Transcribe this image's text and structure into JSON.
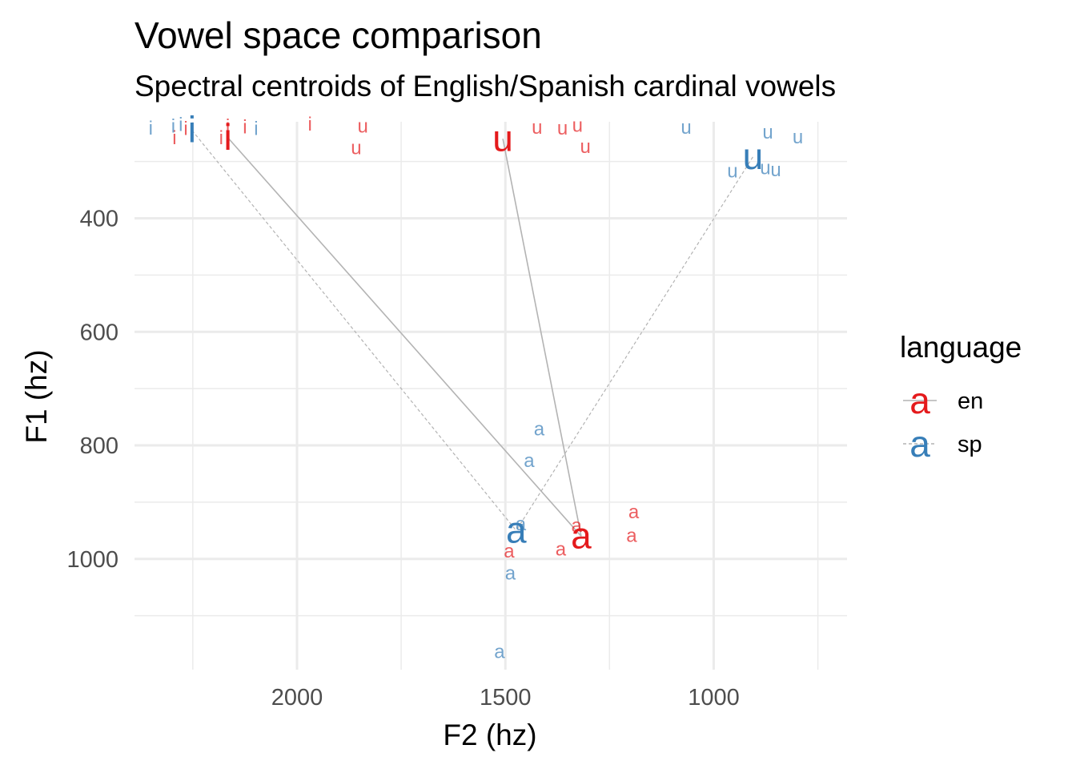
{
  "chart_data": {
    "type": "scatter",
    "title": "Vowel space comparison",
    "subtitle": "Spectral centroids of English/Spanish cardinal vowels",
    "xlabel": "F2 (hz)",
    "ylabel": "F1 (hz)",
    "x_reversed": true,
    "y_reversed": true,
    "xlim": [
      2390,
      680
    ],
    "ylim": [
      230,
      1195
    ],
    "x_ticks": [
      2000,
      1500,
      1000
    ],
    "x_tick_labels": [
      "2000",
      "1500",
      "1000"
    ],
    "x_minor_ticks": [
      2250,
      1750,
      1250,
      750
    ],
    "y_ticks": [
      400,
      600,
      800,
      1000
    ],
    "y_tick_labels": [
      "400",
      "600",
      "800",
      "1000"
    ],
    "y_minor_ticks": [
      300,
      500,
      700,
      900,
      1100
    ],
    "grid": true,
    "legend": {
      "title": "language",
      "position": "right",
      "entries": [
        {
          "key": "en",
          "label": "en",
          "glyph": "a",
          "color": "#e41a1c"
        },
        {
          "key": "sp",
          "label": "sp",
          "glyph": "a",
          "color": "#377eb8"
        }
      ]
    },
    "colors": {
      "en": "#e41a1c",
      "sp": "#377eb8",
      "connector": "#b3b3b3"
    },
    "tokens": [
      {
        "language": "en",
        "vowel": "i",
        "x": 2294,
        "y": 258
      },
      {
        "language": "en",
        "vowel": "i",
        "x": 2267,
        "y": 242
      },
      {
        "language": "en",
        "vowel": "i",
        "x": 2182,
        "y": 258
      },
      {
        "language": "en",
        "vowel": "i",
        "x": 2166,
        "y": 238
      },
      {
        "language": "en",
        "vowel": "i",
        "x": 2125,
        "y": 239
      },
      {
        "language": "en",
        "vowel": "i",
        "x": 1969,
        "y": 234
      },
      {
        "language": "en",
        "vowel": "u",
        "x": 1842,
        "y": 238
      },
      {
        "language": "en",
        "vowel": "u",
        "x": 1858,
        "y": 276
      },
      {
        "language": "en",
        "vowel": "u",
        "x": 1424,
        "y": 240
      },
      {
        "language": "en",
        "vowel": "u",
        "x": 1363,
        "y": 241
      },
      {
        "language": "en",
        "vowel": "u",
        "x": 1327,
        "y": 236
      },
      {
        "language": "en",
        "vowel": "u",
        "x": 1308,
        "y": 274
      },
      {
        "language": "en",
        "vowel": "a",
        "x": 1192,
        "y": 917
      },
      {
        "language": "en",
        "vowel": "a",
        "x": 1197,
        "y": 959
      },
      {
        "language": "en",
        "vowel": "a",
        "x": 1329,
        "y": 941
      },
      {
        "language": "en",
        "vowel": "a",
        "x": 1367,
        "y": 983
      },
      {
        "language": "en",
        "vowel": "a",
        "x": 1491,
        "y": 986
      },
      {
        "language": "sp",
        "vowel": "i",
        "x": 2351,
        "y": 241
      },
      {
        "language": "sp",
        "vowel": "i",
        "x": 2297,
        "y": 238
      },
      {
        "language": "sp",
        "vowel": "i",
        "x": 2279,
        "y": 235
      },
      {
        "language": "sp",
        "vowel": "i",
        "x": 2098,
        "y": 242
      },
      {
        "language": "sp",
        "vowel": "u",
        "x": 1066,
        "y": 240
      },
      {
        "language": "sp",
        "vowel": "u",
        "x": 870,
        "y": 248
      },
      {
        "language": "sp",
        "vowel": "u",
        "x": 798,
        "y": 257
      },
      {
        "language": "sp",
        "vowel": "u",
        "x": 955,
        "y": 317
      },
      {
        "language": "sp",
        "vowel": "u",
        "x": 876,
        "y": 311
      },
      {
        "language": "sp",
        "vowel": "u",
        "x": 851,
        "y": 315
      },
      {
        "language": "sp",
        "vowel": "a",
        "x": 1419,
        "y": 771
      },
      {
        "language": "sp",
        "vowel": "a",
        "x": 1443,
        "y": 827
      },
      {
        "language": "sp",
        "vowel": "a",
        "x": 1463,
        "y": 938
      },
      {
        "language": "sp",
        "vowel": "a",
        "x": 1488,
        "y": 1025
      },
      {
        "language": "sp",
        "vowel": "a",
        "x": 1514,
        "y": 1163
      }
    ],
    "centroids": [
      {
        "language": "en",
        "vowel": "i",
        "x": 2166,
        "y": 258
      },
      {
        "language": "en",
        "vowel": "u",
        "x": 1506,
        "y": 260
      },
      {
        "language": "en",
        "vowel": "a",
        "x": 1318,
        "y": 960
      },
      {
        "language": "sp",
        "vowel": "i",
        "x": 2252,
        "y": 245
      },
      {
        "language": "sp",
        "vowel": "u",
        "x": 906,
        "y": 292
      },
      {
        "language": "sp",
        "vowel": "a",
        "x": 1474,
        "y": 950
      }
    ]
  }
}
